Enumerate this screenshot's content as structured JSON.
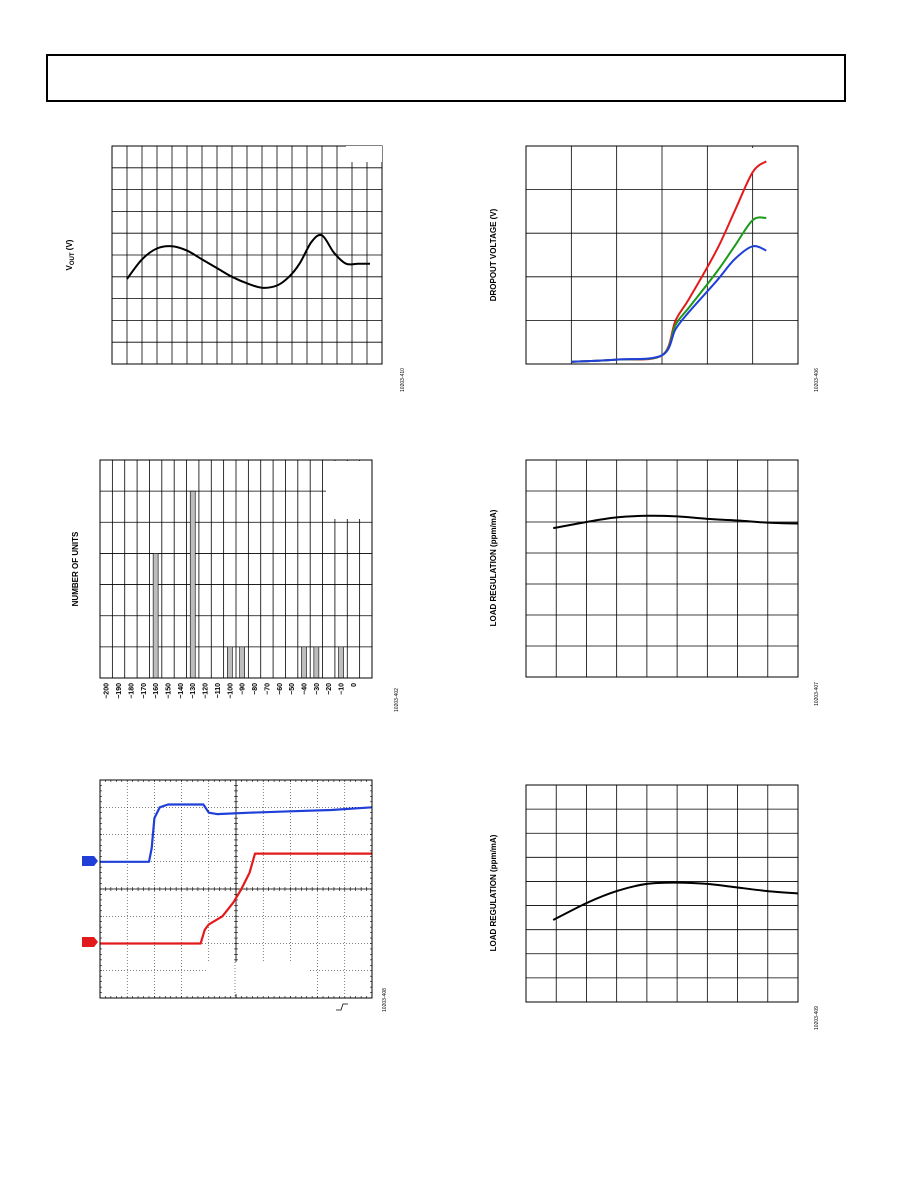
{
  "chart_data": [
    {
      "id": "vout",
      "type": "line",
      "ylabel": "V",
      "ylabel_sub": "OUT",
      "ylabel_suffix": " (V)",
      "figure_id": "10203-410",
      "grid": {
        "cols": 18,
        "rows": 10
      },
      "xlim": [
        0,
        18
      ],
      "ylim": [
        0,
        10
      ],
      "series": [
        {
          "color": "#000000",
          "x": [
            1,
            2,
            3,
            4,
            5,
            6,
            7,
            8,
            9,
            10,
            11,
            11.8,
            12.5,
            13.3,
            14,
            14.8,
            15.6,
            16.4,
            17.2
          ],
          "y": [
            3.9,
            4.8,
            5.3,
            5.4,
            5.2,
            4.8,
            4.4,
            4.0,
            3.7,
            3.5,
            3.6,
            4.0,
            4.6,
            5.6,
            5.9,
            5.1,
            4.6,
            4.6,
            4.6
          ]
        }
      ]
    },
    {
      "id": "dropout",
      "type": "line",
      "ylabel": "DROPOUT VOLTAGE (V)",
      "figure_id": "10203-406",
      "grid": {
        "cols": 6,
        "rows": 5
      },
      "xlim": [
        0,
        6
      ],
      "ylim": [
        0,
        5
      ],
      "series": [
        {
          "color": "#e31a1c",
          "x": [
            1,
            2,
            3,
            3.3,
            3.6,
            4.2,
            4.6,
            5,
            5.3
          ],
          "y": [
            0.05,
            0.1,
            0.2,
            1.0,
            1.5,
            2.6,
            3.5,
            4.4,
            4.65
          ]
        },
        {
          "color": "#1a9a1a",
          "x": [
            1,
            2,
            3,
            3.3,
            3.6,
            4.2,
            4.6,
            5,
            5.3
          ],
          "y": [
            0.05,
            0.1,
            0.2,
            0.9,
            1.3,
            2.1,
            2.7,
            3.3,
            3.35
          ]
        },
        {
          "color": "#1f3fd8",
          "x": [
            1,
            2,
            3,
            3.3,
            3.6,
            4.2,
            4.6,
            5,
            5.3
          ],
          "y": [
            0.05,
            0.1,
            0.2,
            0.8,
            1.2,
            1.9,
            2.4,
            2.7,
            2.6
          ]
        }
      ]
    },
    {
      "id": "histogram",
      "type": "bar",
      "ylabel": "NUMBER OF UNITS",
      "figure_id": "10203-402",
      "grid": {
        "cols": 22,
        "rows": 7
      },
      "categories": [
        "−200",
        "−190",
        "−180",
        "−170",
        "−160",
        "−150",
        "−140",
        "−130",
        "−120",
        "−110",
        "−100",
        "−90",
        "−80",
        "−70",
        "−60",
        "−50",
        "−40",
        "−30",
        "−20",
        "−10",
        "0"
      ],
      "values": [
        0,
        0,
        0,
        0,
        4,
        0,
        0,
        6,
        0,
        0,
        1,
        1,
        0,
        0,
        0,
        0,
        1,
        1,
        0,
        1,
        0
      ],
      "ylim": [
        0,
        7
      ]
    },
    {
      "id": "loadreg1",
      "type": "line",
      "ylabel": "LOAD REGULATION (ppm/mA)",
      "figure_id": "10203-407",
      "grid": {
        "cols": 9,
        "rows": 7
      },
      "xlim": [
        0,
        9
      ],
      "ylim": [
        0,
        7
      ],
      "series": [
        {
          "color": "#000000",
          "x": [
            0.9,
            2,
            3,
            4,
            5,
            6,
            7,
            8,
            9
          ],
          "y": [
            4.8,
            5.0,
            5.15,
            5.2,
            5.18,
            5.1,
            5.05,
            4.98,
            4.95
          ]
        }
      ]
    },
    {
      "id": "transient",
      "type": "line",
      "figure_id": "10203-408",
      "grid": {
        "cols": 10,
        "rows": 8
      },
      "xlim": [
        0,
        10
      ],
      "ylim": [
        0,
        8
      ],
      "series": [
        {
          "color": "#1f3fd8",
          "x": [
            0,
            1.8,
            1.9,
            2.0,
            2.2,
            2.5,
            3.0,
            3.8,
            4.0,
            4.3,
            5.5,
            7,
            8.5,
            10
          ],
          "y": [
            5.0,
            5.0,
            5.5,
            6.6,
            7.0,
            7.1,
            7.1,
            7.1,
            6.8,
            6.75,
            6.8,
            6.85,
            6.9,
            7.0
          ]
        },
        {
          "color": "#e31a1c",
          "x": [
            0,
            3.7,
            3.85,
            4.0,
            4.5,
            4.9,
            5.2,
            5.5,
            5.7,
            6.4,
            8,
            10
          ],
          "y": [
            2.0,
            2.0,
            2.5,
            2.7,
            3.0,
            3.5,
            4.0,
            4.6,
            5.3,
            5.3,
            5.3,
            5.3
          ]
        }
      ]
    },
    {
      "id": "loadreg2",
      "type": "line",
      "ylabel": "LOAD REGULATION (ppm/mA)",
      "figure_id": "10203-409",
      "grid": {
        "cols": 9,
        "rows": 9
      },
      "xlim": [
        0,
        9
      ],
      "ylim": [
        0,
        9
      ],
      "series": [
        {
          "color": "#000000",
          "x": [
            0.9,
            2,
            3,
            4,
            5,
            6,
            7,
            8,
            9
          ],
          "y": [
            3.4,
            4.1,
            4.6,
            4.9,
            4.95,
            4.9,
            4.75,
            4.6,
            4.5
          ]
        }
      ]
    }
  ]
}
